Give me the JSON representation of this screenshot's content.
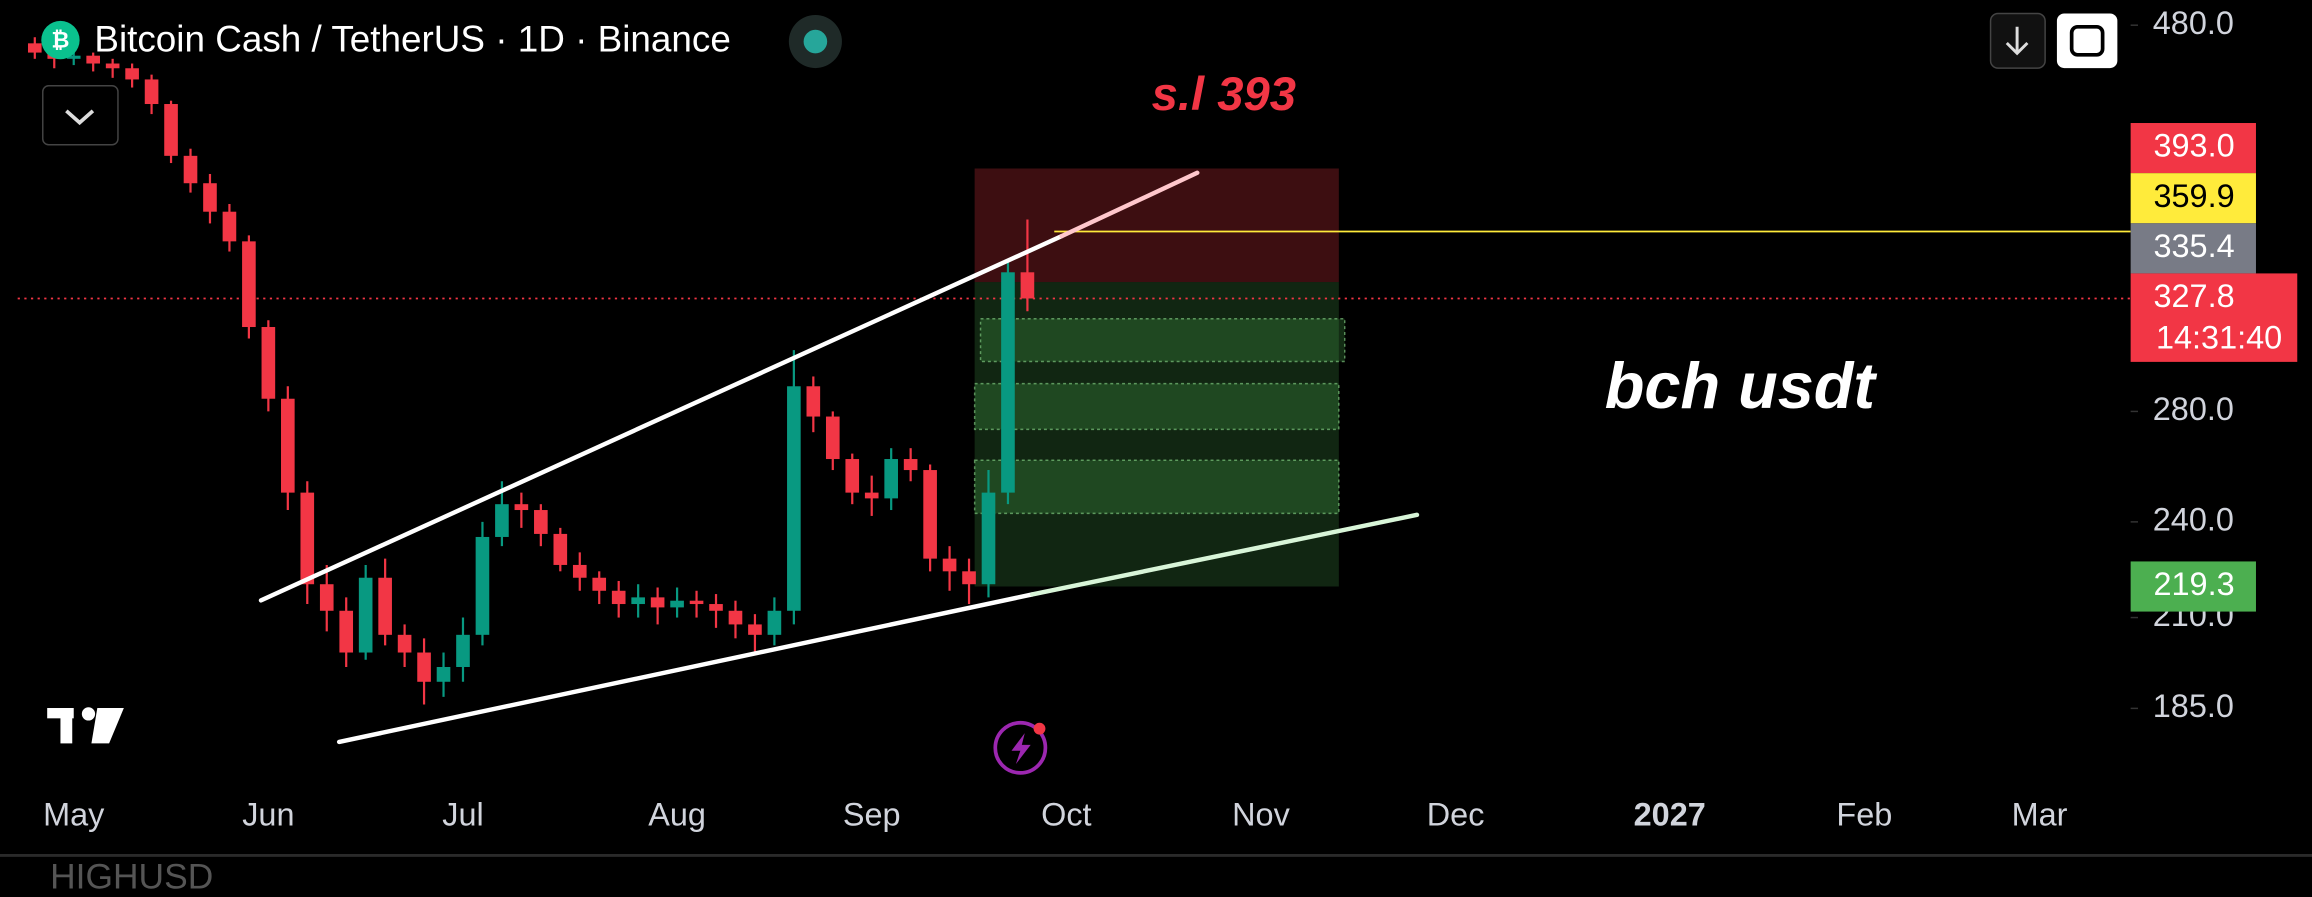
{
  "chart_data": {
    "type": "candlestick",
    "title": "Bitcoin Cash / TetherUS · 1D · Binance",
    "annotations": [
      "s.l 393",
      "bch usdt"
    ],
    "categories": [
      null,
      null,
      "May",
      null,
      null,
      null,
      null,
      null,
      null,
      null,
      null,
      null,
      "Jun",
      null,
      null,
      null,
      null,
      null,
      null,
      null,
      null,
      null,
      "Jul",
      null,
      null,
      null,
      null,
      null,
      null,
      null,
      null,
      null,
      null,
      "Aug",
      null,
      null,
      null,
      null,
      null,
      null,
      null,
      null,
      null,
      "Sep",
      null,
      null,
      null,
      null,
      null,
      null,
      null,
      null,
      null,
      "Oct",
      null,
      null,
      null,
      null,
      null,
      null,
      null,
      null,
      null,
      "Nov",
      null,
      null,
      null,
      null,
      null,
      null,
      null,
      null,
      null,
      "Dec",
      null,
      null,
      null,
      null,
      null,
      null,
      null,
      null,
      null,
      null,
      "2027",
      null,
      null,
      null,
      null,
      null,
      null,
      null,
      null,
      null,
      "Feb",
      null,
      null,
      null,
      null,
      null,
      null,
      null,
      null,
      "Mar",
      null,
      null,
      null,
      null
    ],
    "open": [
      468,
      462,
      458,
      460,
      455,
      452,
      445,
      430,
      400,
      385,
      370,
      355,
      315,
      285,
      250,
      220,
      212,
      200,
      222,
      205,
      200,
      192,
      196,
      205,
      235,
      246,
      244,
      236,
      226,
      222,
      218,
      214,
      216,
      213,
      215,
      214,
      212,
      208,
      205,
      212,
      290,
      278,
      262,
      250,
      248,
      262,
      258,
      228,
      224,
      220,
      250,
      340,
      null,
      null,
      null,
      null,
      null,
      null,
      null,
      null,
      null,
      null,
      null,
      null,
      null,
      null,
      null,
      null,
      null,
      null,
      null,
      null,
      null,
      null,
      null,
      null,
      null,
      null,
      null,
      null,
      null,
      null,
      null,
      null,
      null,
      null,
      null,
      null,
      null,
      null,
      null,
      null,
      null,
      null,
      null,
      null,
      null,
      null,
      null,
      null,
      null,
      null,
      null,
      null,
      null,
      null,
      null,
      null
    ],
    "high": [
      472,
      466,
      464,
      462,
      458,
      455,
      448,
      432,
      404,
      390,
      374,
      358,
      318,
      290,
      254,
      226,
      216,
      226,
      228,
      208,
      204,
      200,
      210,
      240,
      254,
      250,
      246,
      238,
      230,
      224,
      221,
      220,
      219,
      219,
      218,
      217,
      215,
      211,
      216,
      305,
      294,
      280,
      264,
      256,
      266,
      266,
      260,
      232,
      228,
      258,
      345,
      366,
      null,
      null,
      null,
      null,
      null,
      null,
      null,
      null,
      null,
      null,
      null,
      null,
      null,
      null,
      null,
      null,
      null,
      null,
      null,
      null,
      null,
      null,
      null,
      null,
      null,
      null,
      null,
      null,
      null,
      null,
      null,
      null,
      null,
      null,
      null,
      null,
      null,
      null,
      null,
      null,
      null,
      null,
      null,
      null,
      null,
      null,
      null,
      null,
      null,
      null,
      null,
      null,
      null,
      null,
      null,
      null
    ],
    "low": [
      458,
      452,
      454,
      450,
      446,
      440,
      424,
      396,
      380,
      364,
      350,
      310,
      280,
      244,
      214,
      206,
      196,
      198,
      202,
      196,
      186,
      188,
      192,
      202,
      232,
      238,
      232,
      224,
      218,
      214,
      210,
      210,
      208,
      210,
      210,
      207,
      204,
      200,
      202,
      208,
      272,
      258,
      246,
      242,
      244,
      254,
      224,
      218,
      214,
      216,
      246,
      322,
      null,
      null,
      null,
      null,
      null,
      null,
      null,
      null,
      null,
      null,
      null,
      null,
      null,
      null,
      null,
      null,
      null,
      null,
      null,
      null,
      null,
      null,
      null,
      null,
      null,
      null,
      null,
      null,
      null,
      null,
      null,
      null,
      null,
      null,
      null,
      null,
      null,
      null,
      null,
      null,
      null,
      null,
      null,
      null,
      null,
      null,
      null,
      null,
      null,
      null,
      null,
      null,
      null,
      null,
      null,
      null
    ],
    "close": [
      462,
      458,
      460,
      455,
      452,
      445,
      430,
      400,
      385,
      370,
      355,
      315,
      285,
      250,
      220,
      212,
      200,
      222,
      205,
      200,
      192,
      196,
      205,
      235,
      246,
      244,
      236,
      226,
      222,
      218,
      214,
      216,
      213,
      215,
      214,
      212,
      208,
      205,
      212,
      290,
      278,
      262,
      250,
      248,
      262,
      258,
      228,
      224,
      220,
      250,
      340,
      327.8,
      null,
      null,
      null,
      null,
      null,
      null,
      null,
      null,
      null,
      null,
      null,
      null,
      null,
      null,
      null,
      null,
      null,
      null,
      null,
      null,
      null,
      null,
      null,
      null,
      null,
      null,
      null,
      null,
      null,
      null,
      null,
      null,
      null,
      null,
      null,
      null,
      null,
      null,
      null,
      null,
      null,
      null,
      null,
      null,
      null,
      null,
      null,
      null,
      null,
      null,
      null,
      null,
      null,
      null,
      null,
      null
    ],
    "up_color": "#089981",
    "down_color": "#f23645",
    "ylim": [
      167,
      497
    ],
    "log_scale": true,
    "grid": false,
    "yticks": [
      {
        "value": 480,
        "label": "480.0"
      },
      {
        "value": 280,
        "label": "280.0"
      },
      {
        "value": 240,
        "label": "240.0"
      },
      {
        "value": 210,
        "label": "210.0"
      },
      {
        "value": 185,
        "label": "185.0"
      }
    ],
    "price_labels": [
      {
        "value": 393,
        "label": "393.0",
        "color": "#f23645"
      },
      {
        "value": 359.9,
        "label": "359.9",
        "color": "#ffeb3b",
        "line": "solid"
      },
      {
        "value": 335.4,
        "label": "335.4",
        "color": "#787b86"
      },
      {
        "value": 327.8,
        "label": "327.8",
        "color": "#f23645",
        "line": "dotted",
        "countdown": "14:31:40"
      },
      {
        "value": 219.3,
        "label": "219.3",
        "color": "#4caf50"
      }
    ]
  },
  "footer": {
    "symbol": "HIGHUSD"
  }
}
